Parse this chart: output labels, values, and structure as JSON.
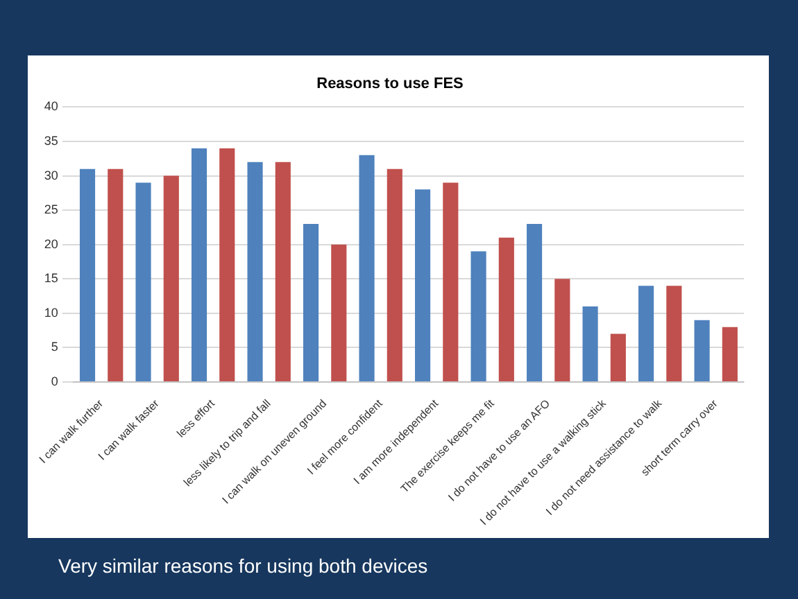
{
  "chart_data": {
    "type": "bar",
    "title": "Reasons to use FES",
    "categories": [
      "I can walk further",
      "I can walk faster",
      "less effort",
      "less likely to trip and fall",
      "I can walk on uneven ground",
      "I feel more confident",
      "I am more independent",
      "The exercise keeps me fit",
      "I do not have to use an AFO",
      "I do not have to use a walking stick",
      "I do not need assistance to walk",
      "short term carry over"
    ],
    "series": [
      {
        "color": "#4f81bd",
        "values": [
          31,
          29,
          34,
          32,
          23,
          33,
          28,
          19,
          23,
          11,
          14,
          9
        ]
      },
      {
        "color": "#c0504d",
        "values": [
          31,
          30,
          34,
          32,
          20,
          31,
          29,
          21,
          15,
          7,
          14,
          8
        ]
      }
    ],
    "ylim": [
      0,
      40
    ],
    "yticks": [
      0,
      5,
      10,
      15,
      20,
      25,
      30,
      35,
      40
    ],
    "grid": "y",
    "annotations": [
      "Very similar reasons for using both devices"
    ]
  }
}
